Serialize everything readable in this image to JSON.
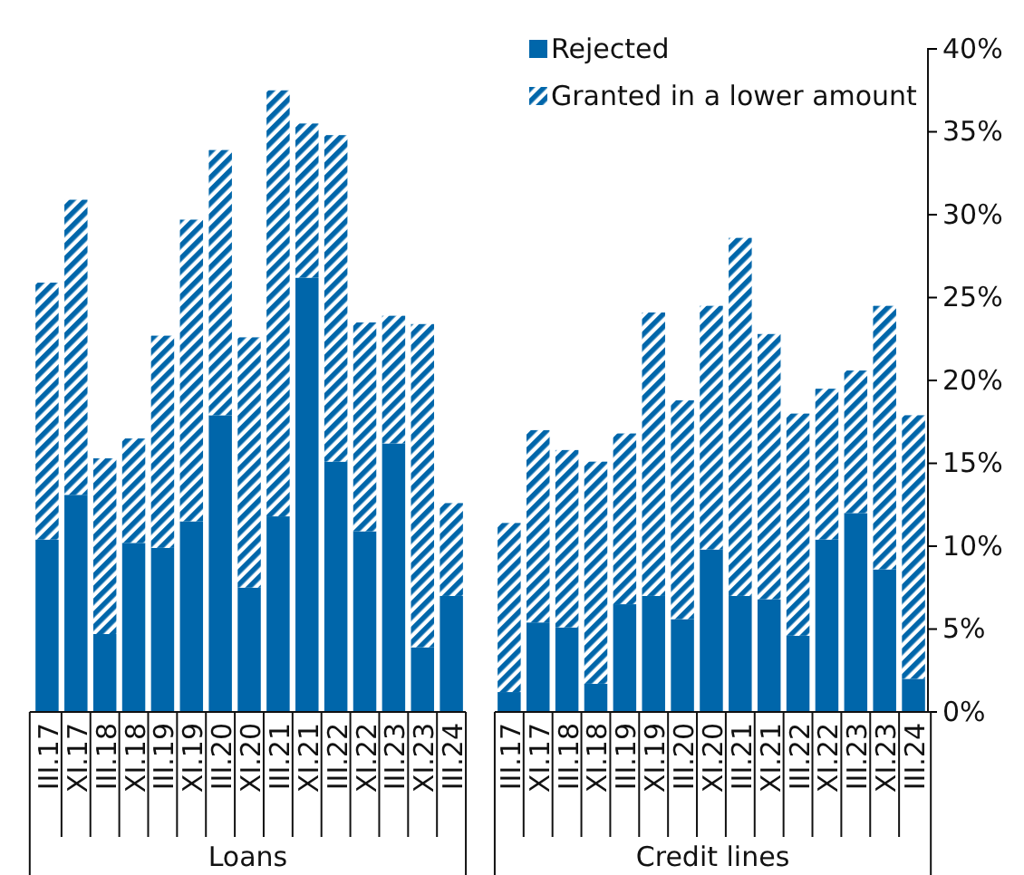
{
  "chart_data": {
    "type": "bar",
    "stacked": true,
    "categories": [
      "III.17",
      "XI.17",
      "III.18",
      "XI.18",
      "III.19",
      "XI.19",
      "III.20",
      "XI.20",
      "III.21",
      "XI.21",
      "III.22",
      "XI.22",
      "III.23",
      "XI.23",
      "III.24",
      null,
      "III.17",
      "XI.17",
      "III.18",
      "XI.18",
      "III.19",
      "XI.19",
      "III.20",
      "XI.20",
      "III.21",
      "XI.21",
      "III.22",
      "XI.22",
      "III.23",
      "XI.23",
      "III.24"
    ],
    "series": [
      {
        "name": "Rejected",
        "color": "#0066aa",
        "values": [
          10.4,
          13.1,
          4.7,
          10.2,
          9.9,
          11.5,
          17.9,
          7.5,
          11.8,
          26.2,
          15.1,
          10.9,
          16.2,
          3.9,
          7.0,
          null,
          1.2,
          5.4,
          5.1,
          1.7,
          6.5,
          7.0,
          5.6,
          9.8,
          7.0,
          6.8,
          4.6,
          10.4,
          12.0,
          8.6,
          2.0
        ]
      },
      {
        "name": "Granted in a lower amount",
        "color": "#0066aa",
        "values": [
          15.5,
          17.8,
          10.6,
          6.3,
          12.8,
          18.2,
          16.0,
          15.1,
          25.7,
          9.3,
          19.7,
          12.6,
          7.7,
          19.5,
          5.6,
          null,
          10.2,
          11.6,
          10.7,
          13.4,
          10.3,
          17.1,
          13.2,
          14.7,
          21.6,
          16.0,
          13.4,
          9.1,
          8.6,
          15.9,
          15.9
        ]
      }
    ],
    "ylim": [
      0,
      40
    ],
    "yticks": [
      {
        "value": 0,
        "label": "0%"
      },
      {
        "value": 5,
        "label": "5%"
      },
      {
        "value": 10,
        "label": "10%"
      },
      {
        "value": 15,
        "label": "15%"
      },
      {
        "value": 20,
        "label": "20%"
      },
      {
        "value": 25,
        "label": "25%"
      },
      {
        "value": 30,
        "label": "30%"
      },
      {
        "value": 35,
        "label": "35%"
      },
      {
        "value": 40,
        "label": "40%"
      }
    ],
    "annotations": [
      "Loans",
      "Credit lines"
    ],
    "legend": "top",
    "grid": false
  }
}
